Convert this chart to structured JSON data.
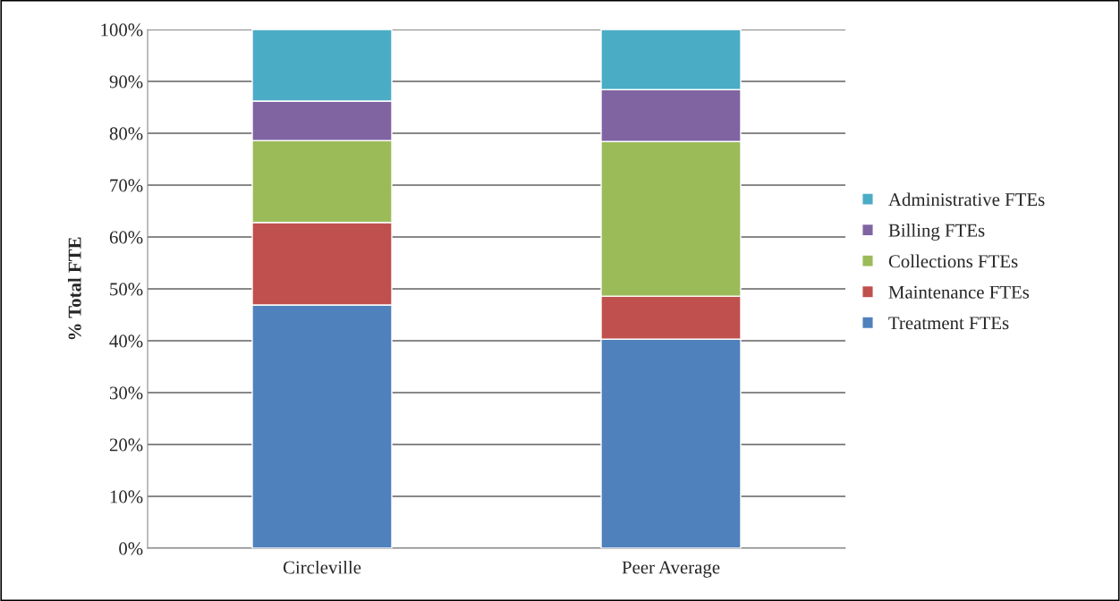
{
  "chart_data": {
    "type": "bar",
    "stacked": true,
    "ylabel": "% Total FTE",
    "categories": [
      "Circleville",
      "Peer Average"
    ],
    "series": [
      {
        "name": "Treatment FTEs",
        "color": "#4f81bd",
        "values": [
          46.9,
          40.3
        ]
      },
      {
        "name": "Maintenance FTEs",
        "color": "#c0504d",
        "values": [
          15.9,
          8.3
        ]
      },
      {
        "name": "Collections FTEs",
        "color": "#9bbb59",
        "values": [
          15.8,
          29.8
        ]
      },
      {
        "name": "Billing FTEs",
        "color": "#8064a2",
        "values": [
          7.6,
          10.0
        ]
      },
      {
        "name": "Administrative FTEs",
        "color": "#4bacc6",
        "values": [
          13.8,
          11.6
        ]
      }
    ],
    "ylim": [
      0,
      100
    ],
    "yticks": [
      {
        "value": 0,
        "label": "0%"
      },
      {
        "value": 10,
        "label": "10%"
      },
      {
        "value": 20,
        "label": "20%"
      },
      {
        "value": 30,
        "label": "30%"
      },
      {
        "value": 40,
        "label": "40%"
      },
      {
        "value": 50,
        "label": "50%"
      },
      {
        "value": 60,
        "label": "60%"
      },
      {
        "value": 70,
        "label": "70%"
      },
      {
        "value": 80,
        "label": "80%"
      },
      {
        "value": 90,
        "label": "90%"
      },
      {
        "value": 100,
        "label": "100%"
      }
    ],
    "grid": "y",
    "legend": "right"
  }
}
